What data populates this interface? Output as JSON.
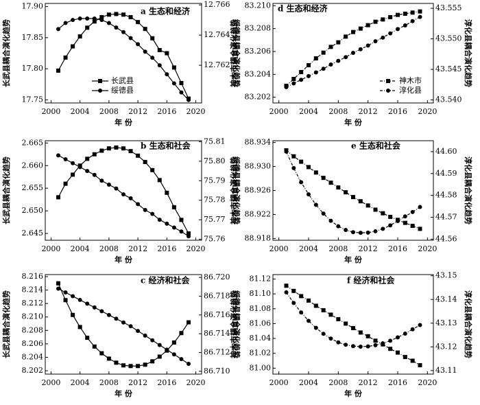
{
  "chart_data": [
    {
      "type": "line",
      "title": "a 生态和经济",
      "xlabel": "年 份",
      "ylabel": "长武县耦合演化趋势",
      "y2label": "绥德县耦合演化趋势",
      "x": [
        2001,
        2002,
        2003,
        2004,
        2005,
        2006,
        2007,
        2008,
        2009,
        2010,
        2011,
        2012,
        2013,
        2014,
        2015,
        2016,
        2017,
        2018,
        2019
      ],
      "xlim": [
        1999.2,
        2020.8
      ],
      "xticks": [
        2000,
        2004,
        2008,
        2012,
        2016,
        2020
      ],
      "ylim": [
        17.745,
        17.905
      ],
      "yticks": [
        17.75,
        {
          "value": 17.8,
          "label": "17.80"
        },
        17.85,
        {
          "value": 17.9,
          "label": "17.90"
        }
      ],
      "y2lim": [
        12.7595,
        12.7661
      ],
      "y2ticks": [
        12.762,
        12.764,
        12.766
      ],
      "legend": "lower left",
      "series": [
        {
          "name": "长武县",
          "color": "#000000",
          "marker": "square",
          "linestyle": "solid",
          "values": [
            17.797,
            17.818,
            17.836,
            17.852,
            17.866,
            17.876,
            17.883,
            17.887,
            17.888,
            17.887,
            17.883,
            17.875,
            17.864,
            17.849,
            17.83,
            17.825,
            17.802,
            17.777,
            17.752
          ]
        },
        {
          "name": "绥德县",
          "color": "#000000",
          "marker": "circle",
          "linestyle": "solid",
          "axis": "y2",
          "values": [
            12.7644,
            12.7648,
            12.765,
            12.7651,
            12.7651,
            12.7651,
            12.765,
            12.7648,
            12.7645,
            12.7642,
            12.7638,
            12.7634,
            12.7629,
            12.7625,
            12.762,
            12.7614,
            12.7608,
            12.7602,
            12.7597
          ]
        }
      ]
    },
    {
      "type": "line",
      "title": "b 生态和社会",
      "xlabel": "年 份",
      "ylabel": "长武县耦合演化趋势",
      "y2label": "绥德县耦合演化趋势",
      "x": [
        2001,
        2002,
        2003,
        2004,
        2005,
        2006,
        2007,
        2008,
        2009,
        2010,
        2011,
        2012,
        2013,
        2014,
        2015,
        2016,
        2017,
        2018,
        2019
      ],
      "xlim": [
        1999.2,
        2020.8
      ],
      "xticks": [
        2000,
        2004,
        2008,
        2012,
        2016,
        2020
      ],
      "ylim": [
        2.6435,
        2.6655
      ],
      "yticks": [
        2.645,
        {
          "value": 2.65,
          "label": "2.650"
        },
        2.655,
        {
          "value": 2.66,
          "label": "2.660"
        },
        2.665
      ],
      "y2lim": [
        75.7595,
        75.8105
      ],
      "y2ticks": [
        75.76,
        75.77,
        75.78,
        75.79,
        {
          "value": 75.8,
          "label": "75.80"
        },
        75.81
      ],
      "series": [
        {
          "color": "#000000",
          "marker": "square",
          "linestyle": "solid",
          "values": [
            2.653,
            2.656,
            2.658,
            2.66,
            2.6615,
            2.6625,
            2.6633,
            2.6638,
            2.664,
            2.6638,
            2.6632,
            2.6622,
            2.6608,
            2.659,
            2.6568,
            2.654,
            2.6508,
            2.648,
            2.645
          ]
        },
        {
          "color": "#000000",
          "marker": "circle",
          "linestyle": "solid",
          "axis": "y2",
          "values": [
            75.803,
            75.801,
            75.799,
            75.797,
            75.795,
            75.793,
            75.79,
            75.788,
            75.786,
            75.783,
            75.781,
            75.778,
            75.775,
            75.773,
            75.77,
            75.768,
            75.766,
            75.764,
            75.7615
          ]
        }
      ]
    },
    {
      "type": "line",
      "title": "c 经济和社会",
      "xlabel": "年 份",
      "ylabel": "长武县耦合演化趋势",
      "y2label": "绥德县耦合演化趋势",
      "x": [
        2001,
        2002,
        2003,
        2004,
        2005,
        2006,
        2007,
        2008,
        2009,
        2010,
        2011,
        2012,
        2013,
        2014,
        2015,
        2016,
        2017,
        2018,
        2019
      ],
      "xlim": [
        1999.2,
        2020.8
      ],
      "xticks": [
        2000,
        2004,
        2008,
        2012,
        2016,
        2020
      ],
      "ylim": [
        8.2015,
        8.2163
      ],
      "yticks": [
        8.202,
        8.204,
        8.206,
        8.208,
        {
          "value": 8.21,
          "label": "8.210"
        },
        8.212,
        8.214,
        8.216
      ],
      "y2lim": [
        86.7097,
        86.7203
      ],
      "y2ticks": [
        {
          "value": 86.71,
          "label": "86.710"
        },
        86.712,
        86.714,
        86.716,
        86.718,
        {
          "value": 86.72,
          "label": "86.720"
        }
      ],
      "series": [
        {
          "color": "#000000",
          "marker": "square",
          "linestyle": "solid",
          "values": [
            8.215,
            8.2125,
            8.2103,
            8.2085,
            8.2069,
            8.2056,
            8.2046,
            8.2038,
            8.2032,
            8.2028,
            8.2027,
            8.2027,
            8.2029,
            8.2034,
            8.2041,
            8.205,
            8.2062,
            8.2076,
            8.2092
          ]
        },
        {
          "color": "#000000",
          "marker": "circle",
          "linestyle": "solid",
          "axis": "y2",
          "values": [
            86.7188,
            86.7184,
            86.718,
            86.7176,
            86.7172,
            86.7168,
            86.7164,
            86.716,
            86.7156,
            86.7152,
            86.7148,
            86.7143,
            86.7138,
            86.7133,
            86.7128,
            86.7123,
            86.7118,
            86.7113,
            86.7108
          ]
        }
      ]
    },
    {
      "type": "line",
      "title": "d 生态和经济",
      "xlabel": "年 份",
      "ylabel": "神木市耦合演化趋势",
      "y2label": "淳化县耦合演化趋势",
      "x": [
        2001,
        2002,
        2003,
        2004,
        2005,
        2006,
        2007,
        2008,
        2009,
        2010,
        2011,
        2012,
        2013,
        2014,
        2015,
        2016,
        2017,
        2018,
        2019
      ],
      "xlim": [
        1999.2,
        2020.8
      ],
      "xticks": [
        2000,
        2004,
        2008,
        2012,
        2016,
        2020
      ],
      "ylim": [
        83.2015,
        83.2102
      ],
      "yticks": [
        83.202,
        83.204,
        83.206,
        83.208,
        {
          "value": 83.21,
          "label": "83.210"
        }
      ],
      "y2lim": [
        43.5395,
        43.5558
      ],
      "y2ticks": [
        {
          "value": 43.54,
          "label": "43.540"
        },
        43.545,
        {
          "value": 43.55,
          "label": "43.550"
        },
        43.555
      ],
      "legend": "lower right",
      "series": [
        {
          "name": "神木市",
          "color": "#000000",
          "marker": "square",
          "linestyle": "dashed",
          "values": [
            83.203,
            83.2036,
            83.2042,
            83.2048,
            83.2054,
            83.2059,
            83.2064,
            83.2068,
            83.2073,
            83.2077,
            83.208,
            83.2083,
            83.2086,
            83.2088,
            83.209,
            83.2092,
            83.2093,
            83.2094,
            83.2095
          ]
        },
        {
          "name": "淳化县",
          "color": "#000000",
          "marker": "circle",
          "linestyle": "dashed",
          "axis": "y2",
          "values": [
            43.5421,
            43.5427,
            43.5433,
            43.5439,
            43.5445,
            43.5451,
            43.5458,
            43.5464,
            43.547,
            43.5477,
            43.5483,
            43.5489,
            43.5496,
            43.5502,
            43.5509,
            43.5516,
            43.5522,
            43.5529,
            43.5536
          ]
        }
      ]
    },
    {
      "type": "line",
      "title": "e 生态和社会",
      "xlabel": "年 份",
      "ylabel": "神木市耦合演化趋势",
      "y2label": "淳化县耦合演化趋势",
      "x": [
        2001,
        2002,
        2003,
        2004,
        2005,
        2006,
        2007,
        2008,
        2009,
        2010,
        2011,
        2012,
        2013,
        2014,
        2015,
        2016,
        2017,
        2018,
        2019
      ],
      "xlim": [
        1999.2,
        2020.8
      ],
      "xticks": [
        2000,
        2004,
        2008,
        2012,
        2016,
        2020
      ],
      "ylim": [
        88.9177,
        88.9343
      ],
      "yticks": [
        88.918,
        88.922,
        88.926,
        {
          "value": 88.93,
          "label": "88.930"
        },
        88.934
      ],
      "y2lim": [
        44.5595,
        44.605
      ],
      "y2ticks": [
        44.56,
        44.57,
        44.58,
        44.59,
        {
          "value": 44.6,
          "label": "44.60"
        }
      ],
      "series": [
        {
          "color": "#000000",
          "marker": "square",
          "linestyle": "dashed",
          "values": [
            88.9327,
            88.9317,
            88.9308,
            88.9299,
            88.929,
            88.9281,
            88.9273,
            88.9265,
            88.9257,
            88.9249,
            88.9242,
            88.9235,
            88.9228,
            88.9222,
            88.9216,
            88.9211,
            88.9206,
            88.9201,
            88.9196
          ]
        },
        {
          "color": "#000000",
          "marker": "circle",
          "linestyle": "dashed",
          "axis": "y2",
          "values": [
            44.6,
            44.5925,
            44.586,
            44.5805,
            44.5757,
            44.5717,
            44.5684,
            44.5659,
            44.5642,
            44.5632,
            44.5629,
            44.563,
            44.5636,
            44.5647,
            44.5663,
            44.5683,
            44.5704,
            44.5724,
            44.5747
          ]
        }
      ]
    },
    {
      "type": "line",
      "title": "f 经济和社会",
      "xlabel": "年 份",
      "ylabel": "神木市耦合演化趋势",
      "y2label": "淳化县耦合演化趋势",
      "x": [
        2001,
        2002,
        2003,
        2004,
        2005,
        2006,
        2007,
        2008,
        2009,
        2010,
        2011,
        2012,
        2013,
        2014,
        2015,
        2016,
        2017,
        2018,
        2019
      ],
      "xlim": [
        1999.2,
        2020.8
      ],
      "xticks": [
        2000,
        2004,
        2008,
        2012,
        2016,
        2020
      ],
      "ylim": [
        80.992,
        81.126
      ],
      "yticks": [
        {
          "value": 81,
          "label": "81.00"
        },
        81.02,
        81.04,
        81.06,
        81.08,
        {
          "value": 81.1,
          "label": "81.10"
        },
        81.12
      ],
      "y2lim": [
        43.1085,
        43.1505
      ],
      "y2ticks": [
        43.11,
        43.12,
        43.13,
        43.14,
        43.15
      ],
      "series": [
        {
          "color": "#000000",
          "marker": "square",
          "linestyle": "dashed",
          "values": [
            81.111,
            81.104,
            81.097,
            81.091,
            81.084,
            81.078,
            81.072,
            81.066,
            81.06,
            81.054,
            81.048,
            81.043,
            81.037,
            81.032,
            81.026,
            81.021,
            81.015,
            81.01,
            81.004
          ]
        },
        {
          "color": "#000000",
          "marker": "circle",
          "linestyle": "dashed",
          "axis": "y2",
          "values": [
            43.143,
            43.1385,
            43.1345,
            43.131,
            43.128,
            43.1255,
            43.1235,
            43.1219,
            43.1209,
            43.1203,
            43.1201,
            43.1202,
            43.1207,
            43.1215,
            43.1226,
            43.124,
            43.1256,
            43.1274,
            43.1292
          ]
        }
      ]
    }
  ]
}
